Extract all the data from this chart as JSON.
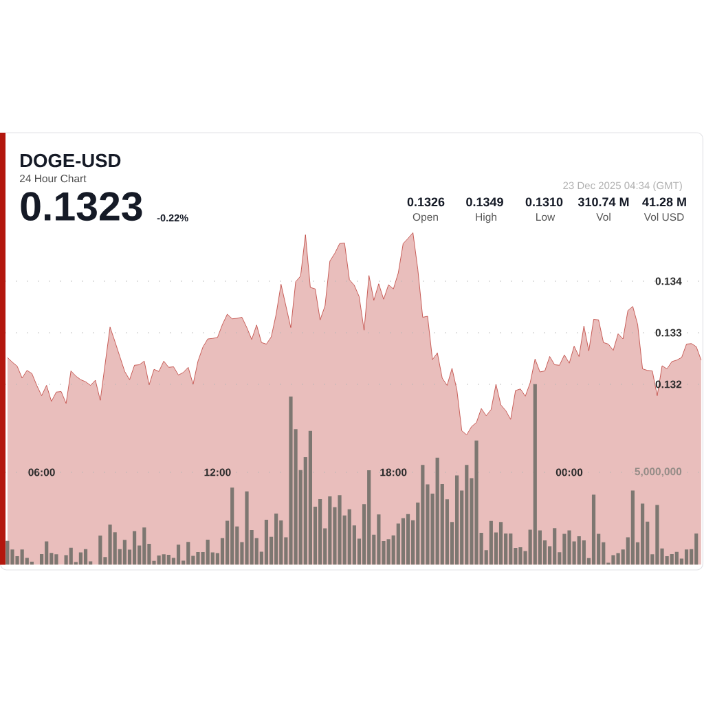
{
  "chart_data": {
    "type": "area",
    "title": "DOGE-USD",
    "subtitle": "24 Hour Chart",
    "annotations": [
      "0.1323",
      "-0.22%",
      "23 Dec 2025 04:34 (GMT)",
      "0.1326",
      "Open",
      "0.1349",
      "High",
      "0.1310",
      "Low",
      "310.74 M",
      "Vol",
      "41.28 M",
      "Vol USD"
    ],
    "x": [
      "2025-12-22T04:50",
      "2025-12-22T05:00",
      "2025-12-22T05:10",
      "2025-12-22T05:20",
      "2025-12-22T05:30",
      "2025-12-22T05:40",
      "2025-12-22T05:50",
      "2025-12-22T06:00",
      "2025-12-22T06:10",
      "2025-12-22T06:20",
      "2025-12-22T06:30",
      "2025-12-22T06:40",
      "2025-12-22T06:50",
      "2025-12-22T07:00",
      "2025-12-22T07:10",
      "2025-12-22T07:20",
      "2025-12-22T07:30",
      "2025-12-22T07:40",
      "2025-12-22T07:50",
      "2025-12-22T08:00",
      "2025-12-22T08:10",
      "2025-12-22T08:20",
      "2025-12-22T08:30",
      "2025-12-22T08:40",
      "2025-12-22T08:50",
      "2025-12-22T09:00",
      "2025-12-22T09:10",
      "2025-12-22T09:20",
      "2025-12-22T09:30",
      "2025-12-22T09:40",
      "2025-12-22T09:50",
      "2025-12-22T10:00",
      "2025-12-22T10:10",
      "2025-12-22T10:20",
      "2025-12-22T10:30",
      "2025-12-22T10:40",
      "2025-12-22T10:50",
      "2025-12-22T11:00",
      "2025-12-22T11:10",
      "2025-12-22T11:20",
      "2025-12-22T11:30",
      "2025-12-22T11:40",
      "2025-12-22T11:50",
      "2025-12-22T12:00",
      "2025-12-22T12:10",
      "2025-12-22T12:20",
      "2025-12-22T12:30",
      "2025-12-22T12:40",
      "2025-12-22T12:50",
      "2025-12-22T13:00",
      "2025-12-22T13:10",
      "2025-12-22T13:20",
      "2025-12-22T13:30",
      "2025-12-22T13:40",
      "2025-12-22T13:50",
      "2025-12-22T14:00",
      "2025-12-22T14:10",
      "2025-12-22T14:20",
      "2025-12-22T14:30",
      "2025-12-22T14:40",
      "2025-12-22T14:50",
      "2025-12-22T15:00",
      "2025-12-22T15:10",
      "2025-12-22T15:20",
      "2025-12-22T15:30",
      "2025-12-22T15:40",
      "2025-12-22T15:50",
      "2025-12-22T16:00",
      "2025-12-22T16:10",
      "2025-12-22T16:20",
      "2025-12-22T16:30",
      "2025-12-22T16:40",
      "2025-12-22T16:50",
      "2025-12-22T17:00",
      "2025-12-22T17:10",
      "2025-12-22T17:20",
      "2025-12-22T17:30",
      "2025-12-22T17:40",
      "2025-12-22T17:50",
      "2025-12-22T18:00",
      "2025-12-22T18:10",
      "2025-12-22T18:20",
      "2025-12-22T18:30",
      "2025-12-22T18:40",
      "2025-12-22T18:50",
      "2025-12-22T19:00",
      "2025-12-22T19:10",
      "2025-12-22T19:20",
      "2025-12-22T19:30",
      "2025-12-22T19:40",
      "2025-12-22T19:50",
      "2025-12-22T20:00",
      "2025-12-22T20:10",
      "2025-12-22T20:20",
      "2025-12-22T20:30",
      "2025-12-22T20:40",
      "2025-12-22T20:50",
      "2025-12-22T21:00",
      "2025-12-22T21:10",
      "2025-12-22T21:20",
      "2025-12-22T21:30",
      "2025-12-22T21:40",
      "2025-12-22T21:50",
      "2025-12-22T22:00",
      "2025-12-22T22:10",
      "2025-12-22T22:20",
      "2025-12-22T22:30",
      "2025-12-22T22:40",
      "2025-12-22T22:50",
      "2025-12-22T23:00",
      "2025-12-22T23:10",
      "2025-12-22T23:20",
      "2025-12-22T23:30",
      "2025-12-22T23:40",
      "2025-12-22T23:50",
      "2025-12-23T00:00",
      "2025-12-23T00:10",
      "2025-12-23T00:20",
      "2025-12-23T00:30",
      "2025-12-23T00:40",
      "2025-12-23T00:50",
      "2025-12-23T01:00",
      "2025-12-23T01:10",
      "2025-12-23T01:20",
      "2025-12-23T01:30",
      "2025-12-23T01:40",
      "2025-12-23T01:50",
      "2025-12-23T02:00",
      "2025-12-23T02:10",
      "2025-12-23T02:20",
      "2025-12-23T02:30",
      "2025-12-23T02:40",
      "2025-12-23T02:50",
      "2025-12-23T03:00",
      "2025-12-23T03:10",
      "2025-12-23T03:20",
      "2025-12-23T03:30",
      "2025-12-23T03:40",
      "2025-12-23T03:50",
      "2025-12-23T04:00",
      "2025-12-23T04:10",
      "2025-12-23T04:20",
      "2025-12-23T04:30"
    ],
    "series": [
      {
        "color": "#b5271f",
        "values": [
          0.13252,
          0.13243,
          0.13235,
          0.13212,
          0.13227,
          0.13221,
          0.13198,
          0.13178,
          0.13198,
          0.13167,
          0.13185,
          0.13186,
          0.13163,
          0.13226,
          0.13216,
          0.13209,
          0.13205,
          0.13198,
          0.13208,
          0.13169,
          0.1324,
          0.13311,
          0.13283,
          0.13254,
          0.13225,
          0.13209,
          0.13237,
          0.13238,
          0.13245,
          0.13199,
          0.13229,
          0.13225,
          0.13245,
          0.13233,
          0.13234,
          0.13218,
          0.13223,
          0.13233,
          0.132,
          0.13245,
          0.13272,
          0.13288,
          0.13289,
          0.13291,
          0.13316,
          0.13336,
          0.13327,
          0.13328,
          0.1333,
          0.1331,
          0.13287,
          0.13315,
          0.13281,
          0.13278,
          0.13292,
          0.13336,
          0.13394,
          0.13352,
          0.1331,
          0.13399,
          0.1341,
          0.1349,
          0.13388,
          0.13385,
          0.13325,
          0.13352,
          0.13439,
          0.13454,
          0.13473,
          0.13474,
          0.13403,
          0.13392,
          0.1337,
          0.13305,
          0.13411,
          0.13363,
          0.13395,
          0.13365,
          0.13393,
          0.13385,
          0.13416,
          0.13473,
          0.13483,
          0.13494,
          0.13423,
          0.1333,
          0.13332,
          0.13248,
          0.13261,
          0.13212,
          0.13198,
          0.13231,
          0.13189,
          0.1311,
          0.13102,
          0.13118,
          0.13126,
          0.13153,
          0.13139,
          0.13151,
          0.132,
          0.1316,
          0.13149,
          0.13132,
          0.13188,
          0.13191,
          0.13177,
          0.13203,
          0.13249,
          0.13224,
          0.13226,
          0.13254,
          0.13238,
          0.13237,
          0.13257,
          0.13241,
          0.13274,
          0.13254,
          0.13313,
          0.13265,
          0.13326,
          0.13325,
          0.13281,
          0.13278,
          0.13266,
          0.13298,
          0.13288,
          0.13343,
          0.13351,
          0.13316,
          0.1323,
          0.13227,
          0.13226,
          0.13178,
          0.13236,
          0.1323,
          0.13244,
          0.13247,
          0.13252,
          0.13278,
          0.13279,
          0.13273,
          0.13247
        ]
      },
      {
        "type": "bar",
        "axis": "y2",
        "color": "#7d7771",
        "values": [
          1290000,
          830000,
          460000,
          830000,
          370000,
          170000,
          null,
          580000,
          1260000,
          640000,
          570000,
          null,
          520000,
          920000,
          150000,
          670000,
          850000,
          190000,
          null,
          1580000,
          420000,
          2170000,
          1760000,
          850000,
          1350000,
          820000,
          1820000,
          1040000,
          2020000,
          1130000,
          210000,
          500000,
          570000,
          540000,
          370000,
          1090000,
          220000,
          1240000,
          480000,
          690000,
          690000,
          1360000,
          670000,
          630000,
          1440000,
          2380000,
          4170000,
          2070000,
          1230000,
          3970000,
          1880000,
          1440000,
          710000,
          2430000,
          1510000,
          2770000,
          2400000,
          1490000,
          9100000,
          7330000,
          5120000,
          5820000,
          7240000,
          3140000,
          3550000,
          1970000,
          3700000,
          3110000,
          3760000,
          2670000,
          3000000,
          2130000,
          1410000,
          3280000,
          5110000,
          1630000,
          2720000,
          1280000,
          1380000,
          1590000,
          2230000,
          2520000,
          2740000,
          2410000,
          3360000,
          5400000,
          4350000,
          3850000,
          5790000,
          4370000,
          3540000,
          2310000,
          4830000,
          4010000,
          5400000,
          4680000,
          6720000,
          1730000,
          790000,
          2370000,
          1750000,
          2310000,
          1690000,
          1690000,
          910000,
          950000,
          740000,
          1900000,
          9770000,
          1860000,
          1320000,
          1000000,
          1980000,
          680000,
          1670000,
          1860000,
          1260000,
          1540000,
          1320000,
          360000,
          3790000,
          1670000,
          1220000,
          110000,
          520000,
          630000,
          830000,
          1490000,
          4010000,
          1220000,
          3310000,
          2330000,
          570000,
          3230000,
          880000,
          460000,
          580000,
          700000,
          330000,
          830000,
          850000,
          1690000,
          null
        ]
      }
    ],
    "xlim": [
      "2025-12-22T04:46",
      "2025-12-23T04:33"
    ],
    "xticks": [
      {
        "value": "2025-12-22T06:00",
        "label": "06:00"
      },
      {
        "value": "2025-12-22T12:00",
        "label": "12:00"
      },
      {
        "value": "2025-12-22T18:00",
        "label": "18:00"
      },
      {
        "value": "2025-12-23T00:00",
        "label": "00:00"
      }
    ],
    "ylim": [
      0.1285,
      0.13688
    ],
    "yticks": [
      0.132,
      0.133,
      0.134
    ],
    "y2lim": [
      0,
      23360000
    ],
    "y2ticks": [
      {
        "value": 5000000,
        "label": "5,000,000"
      }
    ],
    "grid": "y"
  }
}
